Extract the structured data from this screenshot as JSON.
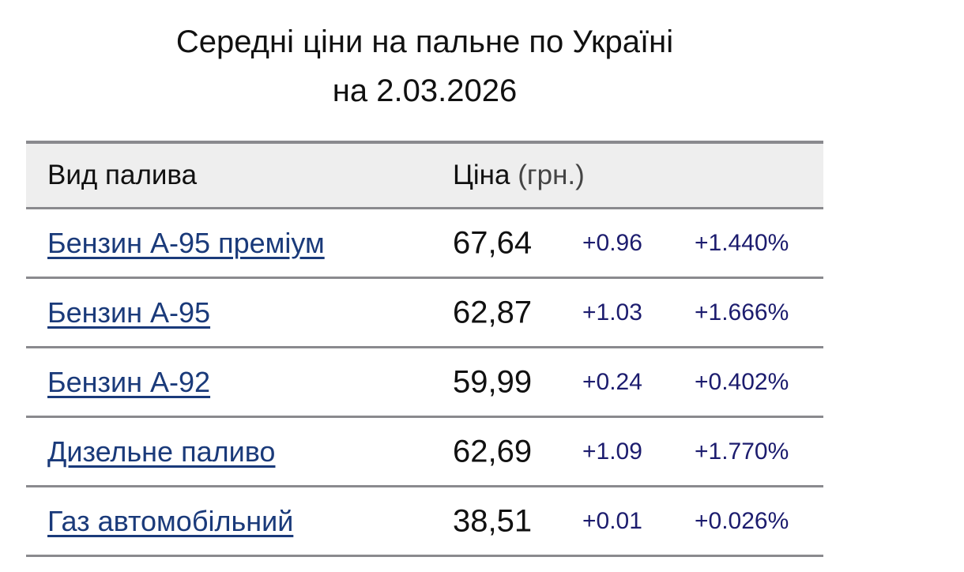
{
  "title": {
    "line1": "Середні ціни на пальне по Україні",
    "line2": "на 2.03.2026"
  },
  "table": {
    "header": {
      "fuel": "Вид палива",
      "price": "Ціна",
      "unit": "(грн.)"
    },
    "rows": [
      {
        "fuel": "Бензин А-95 преміум",
        "price": "67,64",
        "change": "+0.96",
        "percent": "+1.440%"
      },
      {
        "fuel": "Бензин А-95",
        "price": "62,87",
        "change": "+1.03",
        "percent": "+1.666%"
      },
      {
        "fuel": "Бензин А-92",
        "price": "59,99",
        "change": "+0.24",
        "percent": "+0.402%"
      },
      {
        "fuel": "Дизельне паливо",
        "price": "62,69",
        "change": "+1.09",
        "percent": "+1.770%"
      },
      {
        "fuel": "Газ автомобільний",
        "price": "38,51",
        "change": "+0.01",
        "percent": "+0.026%"
      }
    ]
  },
  "colors": {
    "link": "#1a3a7a",
    "change": "#1c1c6e",
    "header_bg": "#eeeeee",
    "border": "#8a8a8e"
  }
}
